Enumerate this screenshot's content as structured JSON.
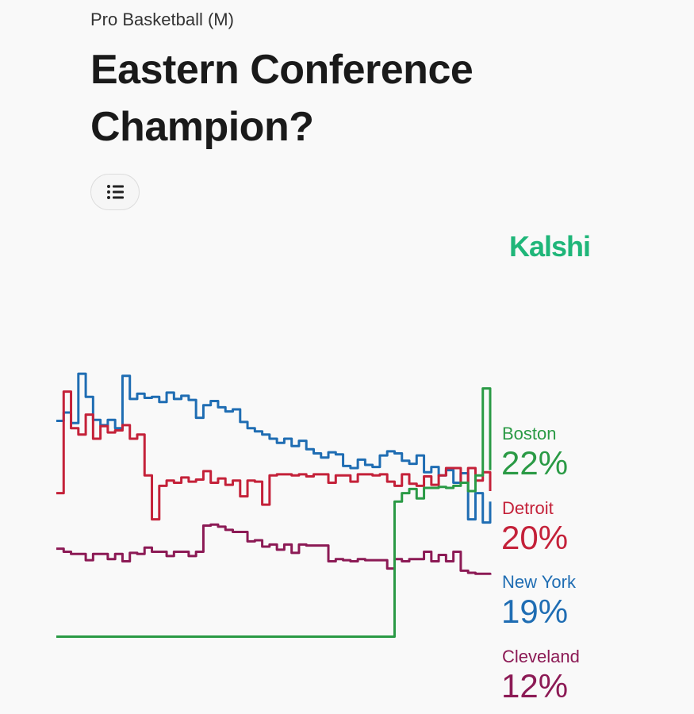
{
  "header": {
    "category": "Pro Basketball (M)",
    "title_lines": [
      "Eastern Conference",
      "Champion?"
    ],
    "logo": "Kalshi"
  },
  "chart_data": {
    "type": "line",
    "ylim": [
      0,
      32
    ],
    "grid": false,
    "series": [
      {
        "name": "Boston",
        "color": "#2a9a45",
        "values": [
          6.1,
          6.1,
          6.1,
          6.1,
          6.1,
          6.1,
          6.1,
          6.1,
          6.1,
          6.1,
          6.1,
          6.1,
          6.1,
          6.1,
          6.1,
          6.1,
          6.1,
          6.1,
          6.1,
          6.1,
          6.1,
          6.1,
          6.1,
          6.1,
          6.1,
          6.1,
          6.1,
          6.1,
          6.1,
          6.1,
          6.1,
          6.1,
          6.1,
          6.1,
          6.1,
          6.1,
          6.1,
          6.1,
          6.1,
          6.1,
          6.1,
          6.1,
          6.1,
          6.1,
          6.1,
          6.1,
          19.0,
          19.8,
          20.2,
          19.3,
          20.3,
          20.3,
          20.4,
          20.3,
          20.5,
          20.8,
          20.0,
          21.5,
          29.8,
          22
        ],
        "value_labels": [
          null,
          null,
          null,
          null,
          null,
          null,
          null,
          null,
          null,
          null,
          null,
          null,
          null,
          null,
          null,
          null,
          null,
          null,
          null,
          null,
          null,
          null,
          null,
          null,
          null,
          null,
          null,
          null,
          null,
          null,
          null,
          null,
          null,
          null,
          null,
          null,
          null,
          null,
          null,
          null,
          null,
          null,
          null,
          null,
          null,
          null,
          null,
          null,
          null,
          null,
          null,
          null,
          null,
          null,
          null,
          null,
          null,
          null,
          null,
          "22%"
        ]
      },
      {
        "name": "Detroit",
        "color": "#c42139",
        "values": [
          19.8,
          29.5,
          26.0,
          25.4,
          27.3,
          25.0,
          26.2,
          25.6,
          25.8,
          26.3,
          25.0,
          25.4,
          21.5,
          17.3,
          20.5,
          21.0,
          20.8,
          21.3,
          20.9,
          21.1,
          21.9,
          20.8,
          21.2,
          20.6,
          21.0,
          19.5,
          21.0,
          20.9,
          18.7,
          21.5,
          21.6,
          21.6,
          21.5,
          21.6,
          21.4,
          21.6,
          21.6,
          20.8,
          21.5,
          21.5,
          20.9,
          21.6,
          21.6,
          21.5,
          21.6,
          20.9,
          20.5,
          21.6,
          20.7,
          20.5,
          21.4,
          20.6,
          21.5,
          22.2,
          22.2,
          20.8,
          22.2,
          21.0,
          21.8,
          20
        ],
        "value_labels": [
          null,
          null,
          null,
          null,
          null,
          null,
          null,
          null,
          null,
          null,
          null,
          null,
          null,
          null,
          null,
          null,
          null,
          null,
          null,
          null,
          null,
          null,
          null,
          null,
          null,
          null,
          null,
          null,
          null,
          null,
          null,
          null,
          null,
          null,
          null,
          null,
          null,
          null,
          null,
          null,
          null,
          null,
          null,
          null,
          null,
          null,
          null,
          null,
          null,
          null,
          null,
          null,
          null,
          null,
          null,
          null,
          null,
          null,
          null,
          "20%"
        ]
      },
      {
        "name": "New York",
        "color": "#1f6db3",
        "values": [
          26.7,
          27.5,
          26.5,
          31.2,
          29.0,
          26.8,
          26.3,
          26.8,
          26.0,
          31.0,
          28.8,
          29.3,
          28.9,
          29.0,
          28.5,
          29.4,
          28.8,
          29.1,
          28.7,
          27.0,
          28.2,
          28.6,
          28.0,
          27.6,
          27.8,
          26.6,
          26.0,
          25.7,
          25.4,
          25.0,
          24.6,
          25.0,
          24.3,
          24.8,
          24.0,
          23.6,
          23.2,
          23.7,
          23.5,
          22.4,
          22.2,
          23.0,
          22.5,
          22.3,
          23.4,
          23.8,
          23.6,
          22.9,
          22.6,
          23.4,
          21.8,
          22.3,
          21.5,
          22.0,
          20.8,
          21.7,
          17.3,
          19.8,
          17.0,
          19
        ],
        "value_labels": [
          null,
          null,
          null,
          null,
          null,
          null,
          null,
          null,
          null,
          null,
          null,
          null,
          null,
          null,
          null,
          null,
          null,
          null,
          null,
          null,
          null,
          null,
          null,
          null,
          null,
          null,
          null,
          null,
          null,
          null,
          null,
          null,
          null,
          null,
          null,
          null,
          null,
          null,
          null,
          null,
          null,
          null,
          null,
          null,
          null,
          null,
          null,
          null,
          null,
          null,
          null,
          null,
          null,
          null,
          null,
          null,
          null,
          null,
          null,
          "19%"
        ]
      },
      {
        "name": "Cleveland",
        "color": "#8c1a55",
        "values": [
          14.5,
          14.2,
          14.0,
          14.0,
          13.4,
          14.0,
          14.0,
          13.5,
          14.0,
          13.3,
          14.1,
          14.0,
          14.6,
          14.2,
          14.2,
          13.8,
          14.2,
          14.2,
          13.8,
          14.2,
          16.7,
          16.8,
          16.6,
          16.3,
          16.1,
          16.1,
          15.2,
          15.3,
          14.7,
          14.9,
          14.4,
          14.9,
          14.1,
          14.9,
          14.8,
          14.8,
          14.8,
          13.3,
          13.5,
          13.4,
          13.3,
          13.5,
          13.4,
          13.4,
          13.4,
          12.6,
          13.5,
          13.3,
          13.5,
          13.5,
          14.2,
          13.3,
          13.9,
          13.3,
          14.2,
          12.4,
          12.2,
          12.1,
          12.1,
          12
        ],
        "value_labels": [
          null,
          null,
          null,
          null,
          null,
          null,
          null,
          null,
          null,
          null,
          null,
          null,
          null,
          null,
          null,
          null,
          null,
          null,
          null,
          null,
          null,
          null,
          null,
          null,
          null,
          null,
          null,
          null,
          null,
          null,
          null,
          null,
          null,
          null,
          null,
          null,
          null,
          null,
          null,
          null,
          null,
          null,
          null,
          null,
          null,
          null,
          null,
          null,
          null,
          null,
          null,
          null,
          null,
          null,
          null,
          null,
          null,
          null,
          null,
          "12%"
        ]
      }
    ]
  }
}
